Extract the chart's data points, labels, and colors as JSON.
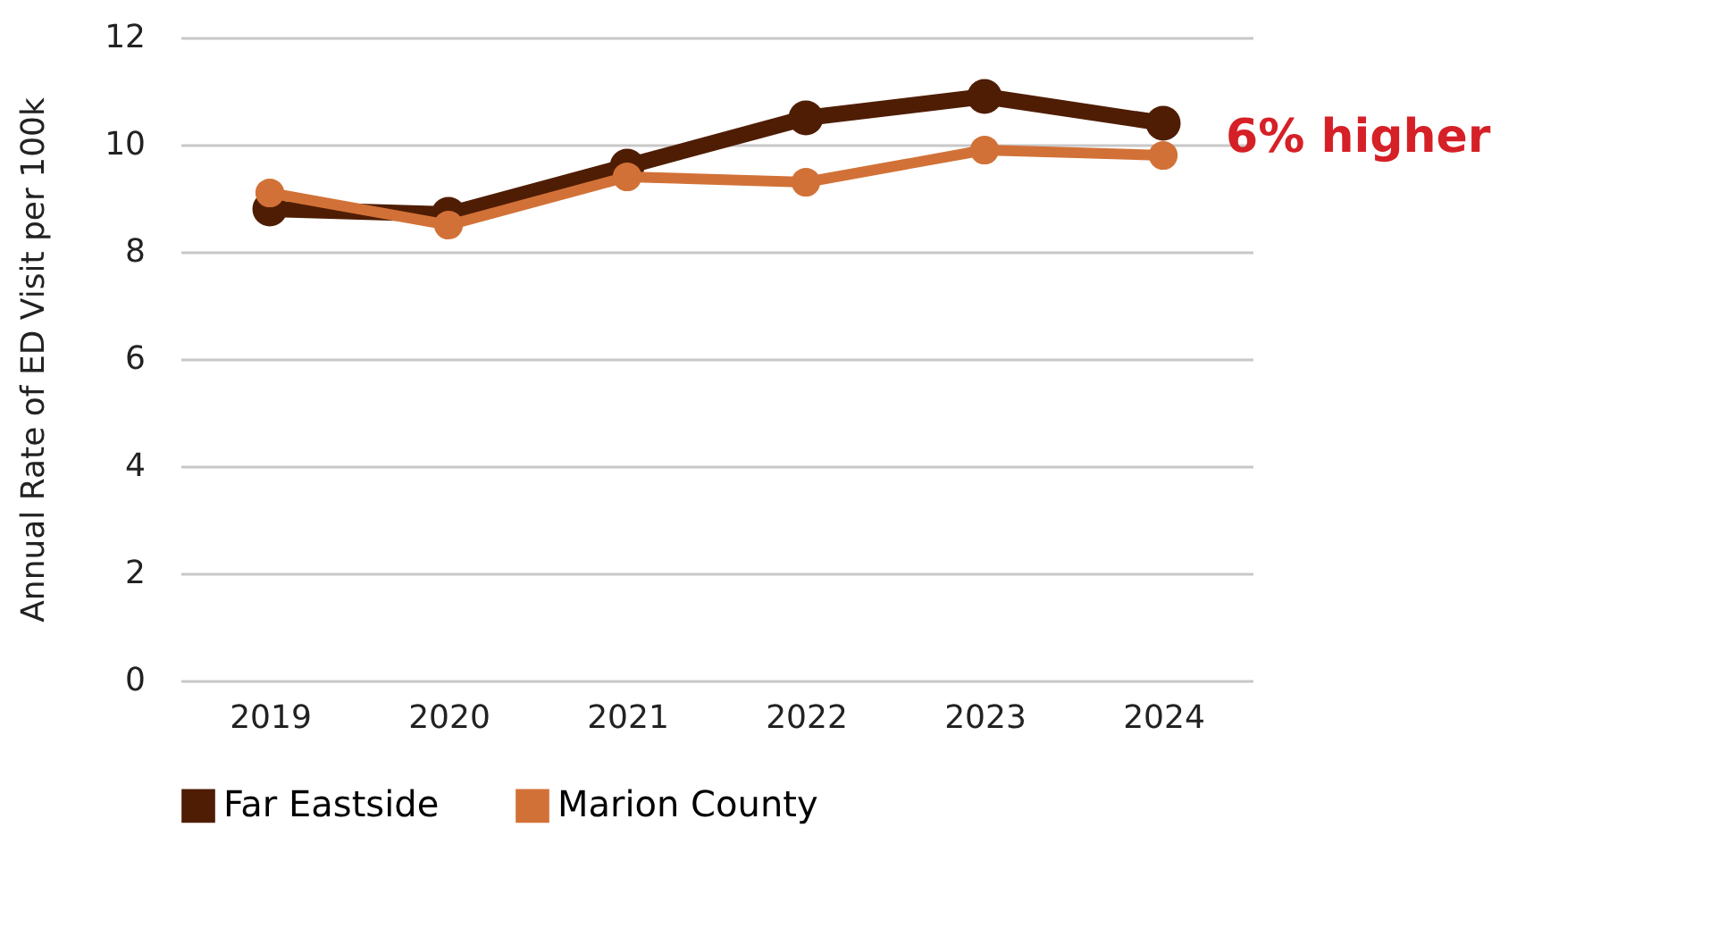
{
  "chart_data": {
    "type": "line",
    "ylabel": "Annual Rate of ED Visit per 100k",
    "categories": [
      "2019",
      "2020",
      "2021",
      "2022",
      "2023",
      "2024"
    ],
    "series": [
      {
        "name": "Far Eastside",
        "color": "#4f1d04",
        "values": [
          8.8,
          8.7,
          9.6,
          10.5,
          10.9,
          10.4
        ]
      },
      {
        "name": "Marion County",
        "color": "#d27137",
        "values": [
          9.1,
          8.5,
          9.4,
          9.3,
          9.9,
          9.8
        ]
      }
    ],
    "ylim": [
      0,
      12
    ],
    "yticks": [
      0,
      2,
      4,
      6,
      8,
      10,
      12
    ],
    "grid": "y",
    "legend": "bottom",
    "marker": "circle",
    "line_style": "solid",
    "annotations": [
      {
        "text": "6% higher",
        "x": "2024",
        "y": 10.4
      }
    ]
  }
}
